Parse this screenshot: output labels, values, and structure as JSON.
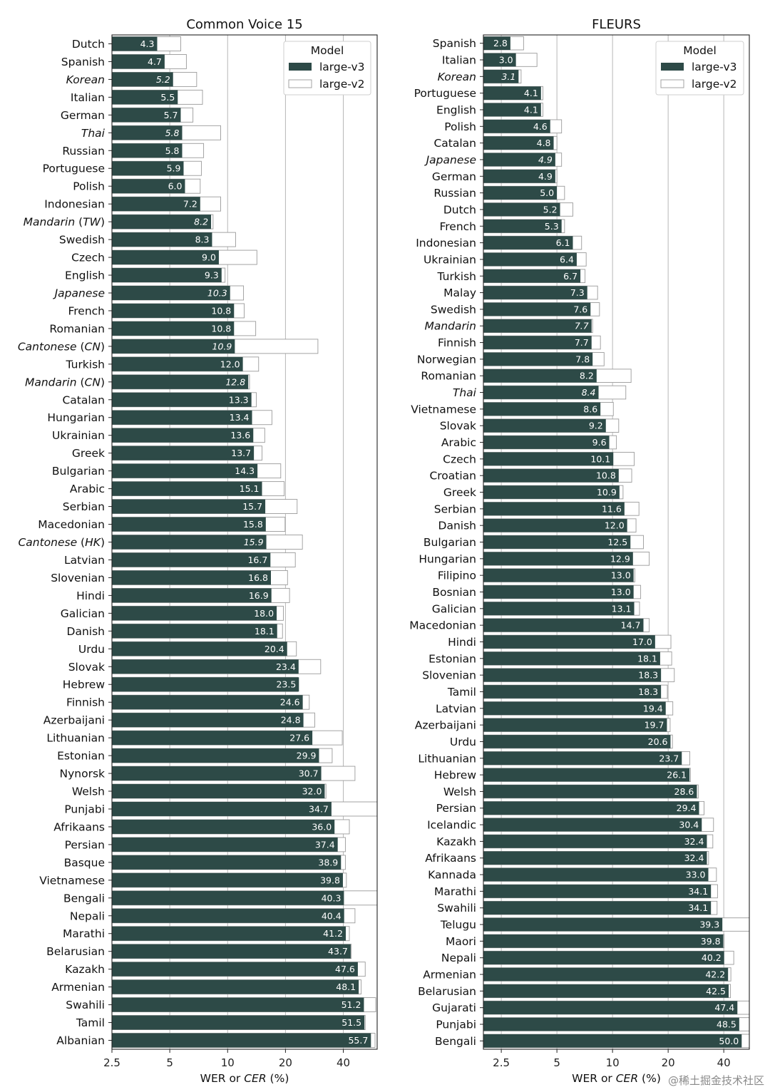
{
  "figure": {
    "watermark": "@稀土掘金技术社区"
  },
  "chart_data": [
    {
      "type": "bar",
      "orientation": "horizontal",
      "title": "Common Voice 15",
      "xlabel": "WER or CER (%)",
      "xlabel_parts": [
        "WER or ",
        "CER",
        " (%)"
      ],
      "xscale": "log",
      "xlim": [
        2.5,
        60
      ],
      "xticks": [
        2.5,
        5,
        10,
        20,
        40
      ],
      "xtick_labels": [
        "2.5",
        "5",
        "10",
        "20",
        "40"
      ],
      "grid": "vertical",
      "legend": {
        "title": "Model",
        "placement": "top-right",
        "entries": [
          "large-v3",
          "large-v2"
        ]
      },
      "colors": {
        "large-v3": "#2d4a47",
        "large-v2": "#ffffff"
      },
      "categories": [
        "Dutch",
        "Spanish",
        "Korean",
        "Italian",
        "German",
        "Thai",
        "Russian",
        "Portuguese",
        "Polish",
        "Indonesian",
        "Mandarin (TW)",
        "Swedish",
        "Czech",
        "English",
        "Japanese",
        "French",
        "Romanian",
        "Cantonese (CN)",
        "Turkish",
        "Mandarin (CN)",
        "Catalan",
        "Hungarian",
        "Ukrainian",
        "Greek",
        "Bulgarian",
        "Arabic",
        "Serbian",
        "Macedonian",
        "Cantonese (HK)",
        "Latvian",
        "Slovenian",
        "Hindi",
        "Galician",
        "Danish",
        "Urdu",
        "Slovak",
        "Hebrew",
        "Finnish",
        "Azerbaijani",
        "Lithuanian",
        "Estonian",
        "Nynorsk",
        "Welsh",
        "Punjabi",
        "Afrikaans",
        "Persian",
        "Basque",
        "Vietnamese",
        "Bengali",
        "Nepali",
        "Marathi",
        "Belarusian",
        "Kazakh",
        "Armenian",
        "Swahili",
        "Tamil",
        "Albanian"
      ],
      "cer_languages": [
        "Korean",
        "Thai",
        "Mandarin (TW)",
        "Japanese",
        "Cantonese (CN)",
        "Mandarin (CN)",
        "Cantonese (HK)"
      ],
      "series": [
        {
          "name": "large-v3",
          "values": [
            4.3,
            4.7,
            5.2,
            5.5,
            5.7,
            5.8,
            5.8,
            5.9,
            6.0,
            7.2,
            8.2,
            8.3,
            9.0,
            9.3,
            10.3,
            10.8,
            10.8,
            10.9,
            12.0,
            12.8,
            13.3,
            13.4,
            13.6,
            13.7,
            14.3,
            15.1,
            15.7,
            15.8,
            15.9,
            16.7,
            16.8,
            16.9,
            18.0,
            18.1,
            20.4,
            23.4,
            23.5,
            24.6,
            24.8,
            27.6,
            29.9,
            30.7,
            32.0,
            34.7,
            36.0,
            37.4,
            38.9,
            39.8,
            40.3,
            40.4,
            41.2,
            43.7,
            47.6,
            48.1,
            51.2,
            51.5,
            55.7
          ]
        },
        {
          "name": "large-v2",
          "values": [
            5.7,
            6.1,
            6.9,
            7.4,
            6.6,
            9.2,
            7.5,
            7.3,
            7.2,
            9.2,
            8.4,
            11.0,
            14.2,
            9.7,
            12.1,
            12.2,
            14.0,
            29.5,
            14.5,
            13.0,
            14.1,
            17.0,
            15.6,
            15.1,
            18.9,
            19.7,
            23.0,
            19.9,
            24.5,
            22.5,
            20.5,
            21.0,
            19.5,
            19.3,
            22.8,
            30.5,
            23.2,
            26.6,
            28.4,
            39.5,
            35.0,
            46.0,
            32.5,
            60.0,
            43.0,
            41.0,
            41.0,
            41.5,
            60.0,
            46.0,
            43.0,
            44.0,
            52.0,
            49.5,
            59.0,
            52.0,
            58.5
          ]
        }
      ]
    },
    {
      "type": "bar",
      "orientation": "horizontal",
      "title": "FLEURS",
      "xlabel": "WER or CER (%)",
      "xlabel_parts": [
        "WER or ",
        "CER",
        " (%)"
      ],
      "xscale": "log",
      "xlim": [
        2.0,
        55
      ],
      "xticks": [
        2.5,
        5,
        10,
        20,
        40
      ],
      "xtick_labels": [
        "2.5",
        "5",
        "10",
        "20",
        "40"
      ],
      "grid": "vertical",
      "legend": {
        "title": "Model",
        "placement": "top-right",
        "entries": [
          "large-v3",
          "large-v2"
        ]
      },
      "colors": {
        "large-v3": "#2d4a47",
        "large-v2": "#ffffff"
      },
      "categories": [
        "Spanish",
        "Italian",
        "Korean",
        "Portuguese",
        "English",
        "Polish",
        "Catalan",
        "Japanese",
        "German",
        "Russian",
        "Dutch",
        "French",
        "Indonesian",
        "Ukrainian",
        "Turkish",
        "Malay",
        "Swedish",
        "Mandarin",
        "Finnish",
        "Norwegian",
        "Romanian",
        "Thai",
        "Vietnamese",
        "Slovak",
        "Arabic",
        "Czech",
        "Croatian",
        "Greek",
        "Serbian",
        "Danish",
        "Bulgarian",
        "Hungarian",
        "Filipino",
        "Bosnian",
        "Galician",
        "Macedonian",
        "Hindi",
        "Estonian",
        "Slovenian",
        "Tamil",
        "Latvian",
        "Azerbaijani",
        "Urdu",
        "Lithuanian",
        "Hebrew",
        "Welsh",
        "Persian",
        "Icelandic",
        "Kazakh",
        "Afrikaans",
        "Kannada",
        "Marathi",
        "Swahili",
        "Telugu",
        "Maori",
        "Nepali",
        "Armenian",
        "Belarusian",
        "Gujarati",
        "Punjabi",
        "Bengali"
      ],
      "cer_languages": [
        "Korean",
        "Japanese",
        "Mandarin",
        "Thai"
      ],
      "series": [
        {
          "name": "large-v3",
          "values": [
            2.8,
            3.0,
            3.1,
            4.1,
            4.1,
            4.6,
            4.8,
            4.9,
            4.9,
            5.0,
            5.2,
            5.3,
            6.1,
            6.4,
            6.7,
            7.3,
            7.6,
            7.7,
            7.7,
            7.8,
            8.2,
            8.4,
            8.6,
            9.2,
            9.6,
            10.1,
            10.8,
            10.9,
            11.6,
            12.0,
            12.5,
            12.9,
            13.0,
            13.0,
            13.1,
            14.7,
            17.0,
            18.1,
            18.3,
            18.3,
            19.4,
            19.7,
            20.6,
            23.7,
            26.1,
            28.6,
            29.4,
            30.4,
            32.4,
            32.4,
            33.0,
            34.1,
            34.1,
            39.3,
            39.8,
            40.2,
            42.2,
            42.5,
            47.4,
            48.5,
            50.0
          ]
        },
        {
          "name": "large-v2",
          "values": [
            3.3,
            3.9,
            3.2,
            4.2,
            4.2,
            5.3,
            5.0,
            5.3,
            5.0,
            5.5,
            6.1,
            5.5,
            6.8,
            7.2,
            7.1,
            8.3,
            8.5,
            7.8,
            8.6,
            9.0,
            12.6,
            11.8,
            10.1,
            10.8,
            10.5,
            13.1,
            12.7,
            11.4,
            13.9,
            13.4,
            14.7,
            15.8,
            13.2,
            14.2,
            14.0,
            15.8,
            20.7,
            20.9,
            21.6,
            19.8,
            21.2,
            20.5,
            21.1,
            26.2,
            26.4,
            29.1,
            31.3,
            35.2,
            34.9,
            33.1,
            36.5,
            37.0,
            36.8,
            55.0,
            40.2,
            45.3,
            43.7,
            43.5,
            55.0,
            55.0,
            55.0
          ]
        }
      ]
    }
  ]
}
